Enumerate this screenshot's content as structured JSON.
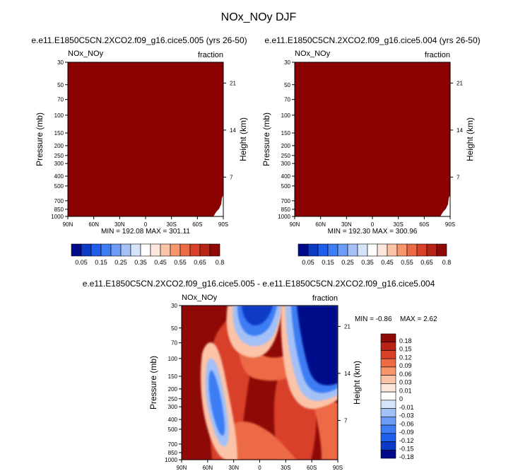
{
  "main_title": "NOx_NOy DJF",
  "colors": {
    "dark_red": "#8b0000",
    "blue_dark": "#000a8b",
    "white": "#ffffff"
  },
  "palette_top": [
    "#000a8b",
    "#0b3bc6",
    "#1e5eea",
    "#3e7df4",
    "#6d9cf6",
    "#a3c0f7",
    "#d5e4fb",
    "#ffffff",
    "#fde7dd",
    "#fbc3a8",
    "#f7966d",
    "#ec6b45",
    "#d8402a",
    "#b72416",
    "#8f0a06"
  ],
  "palette_diff": [
    "#000a8b",
    "#0b3bc6",
    "#1e5eea",
    "#3e7df4",
    "#6d9cf6",
    "#a3c0f7",
    "#d5e4fb",
    "#ffffff",
    "#fde7dd",
    "#fbc3a8",
    "#f7966d",
    "#ec6b45",
    "#d8402a",
    "#b72416",
    "#8f0a06"
  ],
  "chart_data": [
    {
      "type": "heatmap",
      "id": "case-005",
      "title": "e.e11.E1850C5CN.2XCO2.f09_g16.cice5.005 (yrs 26-50)",
      "left_label": "NOx_NOy",
      "right_label": "fraction",
      "xlabel": "",
      "ylabel": "Pressure (mb)",
      "y2label": "Height (km)",
      "x_ticks": [
        "90N",
        "60N",
        "30N",
        "0",
        "30S",
        "60S",
        "90S"
      ],
      "x_range": [
        90,
        -90
      ],
      "y_ticks": [
        30,
        50,
        70,
        100,
        150,
        200,
        250,
        300,
        400,
        500,
        700,
        850,
        1000
      ],
      "y_range": [
        30,
        1000
      ],
      "y2_ticks": [
        "21",
        "14",
        "7"
      ],
      "stats": "MIN = 192.08   MAX = 301.11",
      "fill": "uniform dark red (all values above top contour level)"
    },
    {
      "type": "heatmap",
      "id": "case-004",
      "title": "e.e11.E1850C5CN.2XCO2.f09_g16.cice5.004 (yrs 26-50)",
      "left_label": "NOx_NOy",
      "right_label": "fraction",
      "xlabel": "",
      "ylabel": "Pressure (mb)",
      "y2label": "Height (km)",
      "x_ticks": [
        "90N",
        "60N",
        "30N",
        "0",
        "30S",
        "60S",
        "90S"
      ],
      "x_range": [
        90,
        -90
      ],
      "y_ticks": [
        30,
        50,
        70,
        100,
        150,
        200,
        250,
        300,
        400,
        500,
        700,
        850,
        1000
      ],
      "y_range": [
        30,
        1000
      ],
      "y2_ticks": [
        "21",
        "14",
        "7"
      ],
      "stats": "MIN = 192.30   MAX = 300.96",
      "fill": "uniform dark red (all values above top contour level)"
    },
    {
      "type": "heatmap",
      "id": "difference",
      "title": "e.e11.E1850C5CN.2XCO2.f09_g16.cice5.005 - e.e11.E1850C5CN.2XCO2.f09_g16.cice5.004",
      "left_label": "NOx_NOy",
      "right_label": "fraction",
      "ylabel": "Pressure (mb)",
      "y2label": "Height (km)",
      "x_ticks": [
        "90N",
        "60N",
        "30N",
        "0",
        "30S",
        "60S",
        "90S"
      ],
      "x_range": [
        90,
        -90
      ],
      "y_ticks": [
        30,
        50,
        70,
        100,
        150,
        200,
        250,
        300,
        400,
        500,
        700,
        850,
        1000
      ],
      "y_range": [
        30,
        1000
      ],
      "y2_ticks": [
        "21",
        "14",
        "7"
      ],
      "stats": "MIN =  -0.86   MAX =   2.62",
      "stat_min_label": "MIN =  -0.86",
      "stat_max_label": "MAX =   2.62"
    }
  ],
  "colorbar_top": {
    "labels": [
      "0.05",
      "0.15",
      "0.25",
      "0.35",
      "0.45",
      "0.55",
      "0.65",
      "0.8"
    ]
  },
  "colorbar_diff": {
    "labels": [
      "0.18",
      "0.15",
      "0.12",
      "0.09",
      "0.06",
      "0.03",
      "0.01",
      "0",
      "-0.01",
      "-0.03",
      "-0.06",
      "-0.09",
      "-0.12",
      "-0.15",
      "-0.18"
    ]
  }
}
